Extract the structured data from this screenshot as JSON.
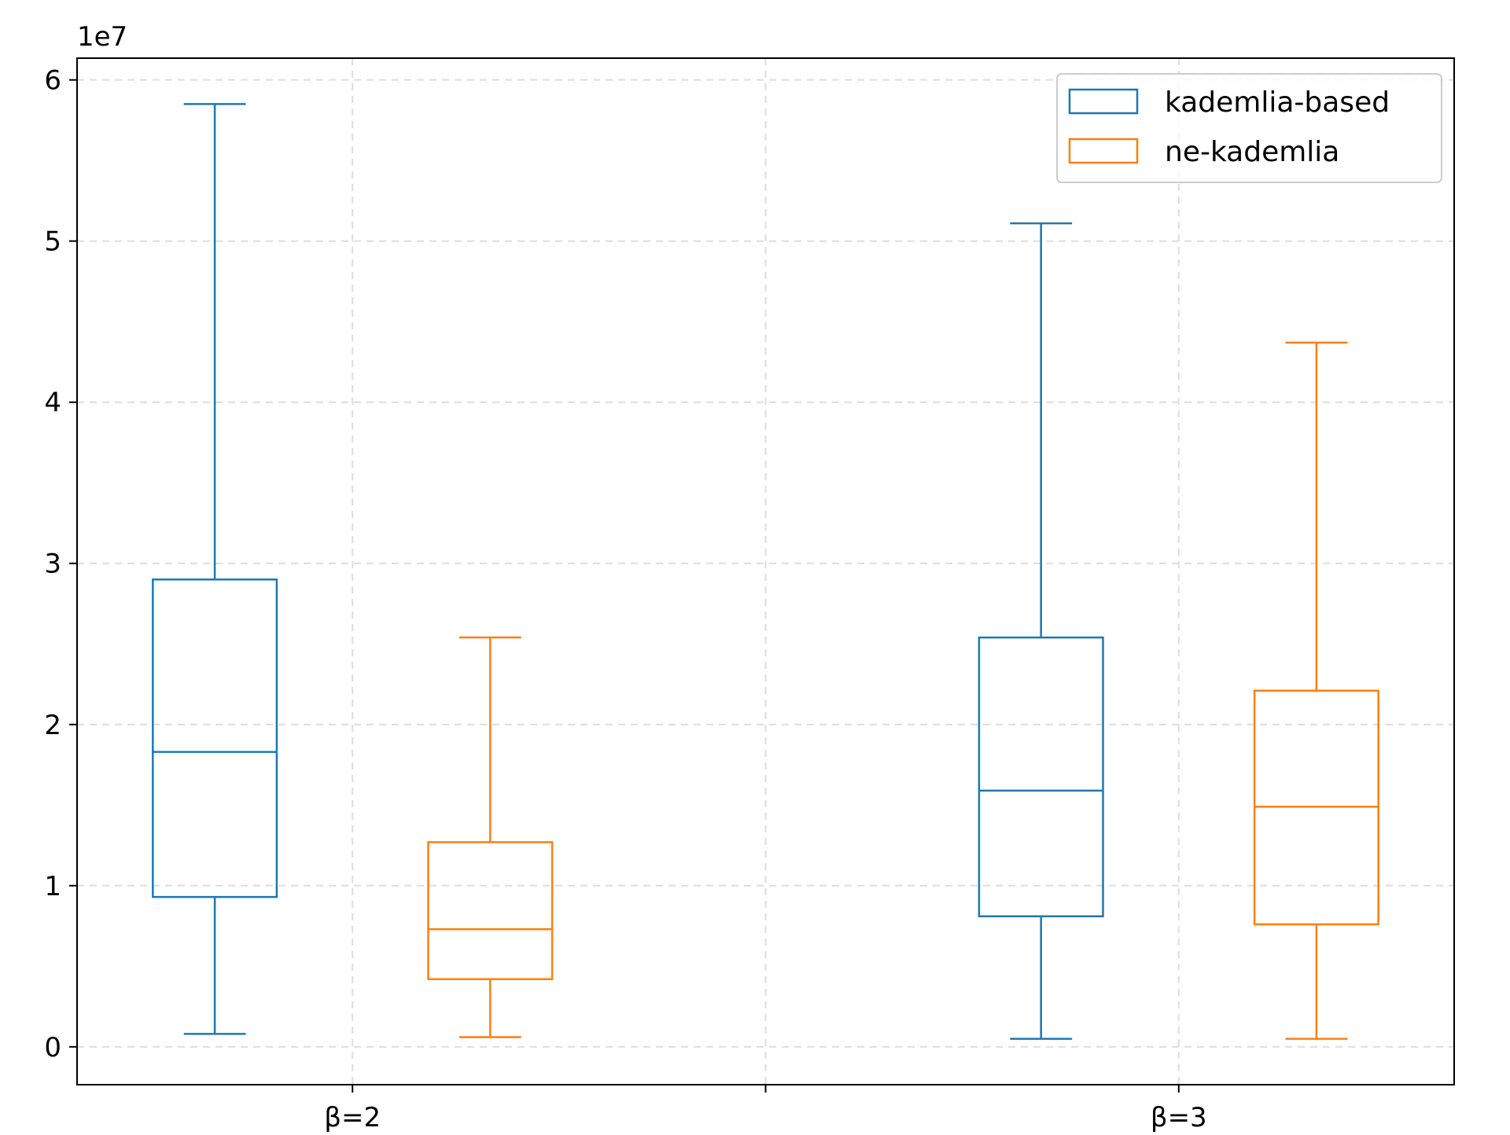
{
  "chart_data": {
    "type": "box",
    "title": "",
    "xlabel": "",
    "ylabel": "",
    "y_offset_label": "1e7",
    "ylim": [
      -0.235,
      6.135
    ],
    "yticks": [
      {
        "value": 0,
        "label": "0"
      },
      {
        "value": 1,
        "label": "1"
      },
      {
        "value": 2,
        "label": "2"
      },
      {
        "value": 3,
        "label": "3"
      },
      {
        "value": 4,
        "label": "4"
      },
      {
        "value": 5,
        "label": "5"
      },
      {
        "value": 6,
        "label": "6"
      }
    ],
    "xlim": [
      0,
      1
    ],
    "xticks": [
      {
        "value": 0.2,
        "label": "β=2"
      },
      {
        "value": 0.5,
        "label": ""
      },
      {
        "value": 0.8,
        "label": "β=3"
      }
    ],
    "grid": true,
    "legend_position": "top-right",
    "series": [
      {
        "name": "kademlia-based",
        "color": "#1f77b4",
        "boxes": [
          {
            "x": 0.1,
            "whisker_low": 0.08,
            "q1": 0.93,
            "median": 1.83,
            "q3": 2.9,
            "whisker_high": 5.85
          },
          {
            "x": 0.7,
            "whisker_low": 0.05,
            "q1": 0.81,
            "median": 1.59,
            "q3": 2.54,
            "whisker_high": 5.11
          }
        ]
      },
      {
        "name": "ne-kademlia",
        "color": "#ff7f0e",
        "boxes": [
          {
            "x": 0.3,
            "whisker_low": 0.06,
            "q1": 0.42,
            "median": 0.73,
            "q3": 1.27,
            "whisker_high": 2.54
          },
          {
            "x": 0.9,
            "whisker_low": 0.05,
            "q1": 0.76,
            "median": 1.49,
            "q3": 2.21,
            "whisker_high": 4.37
          }
        ]
      }
    ]
  }
}
